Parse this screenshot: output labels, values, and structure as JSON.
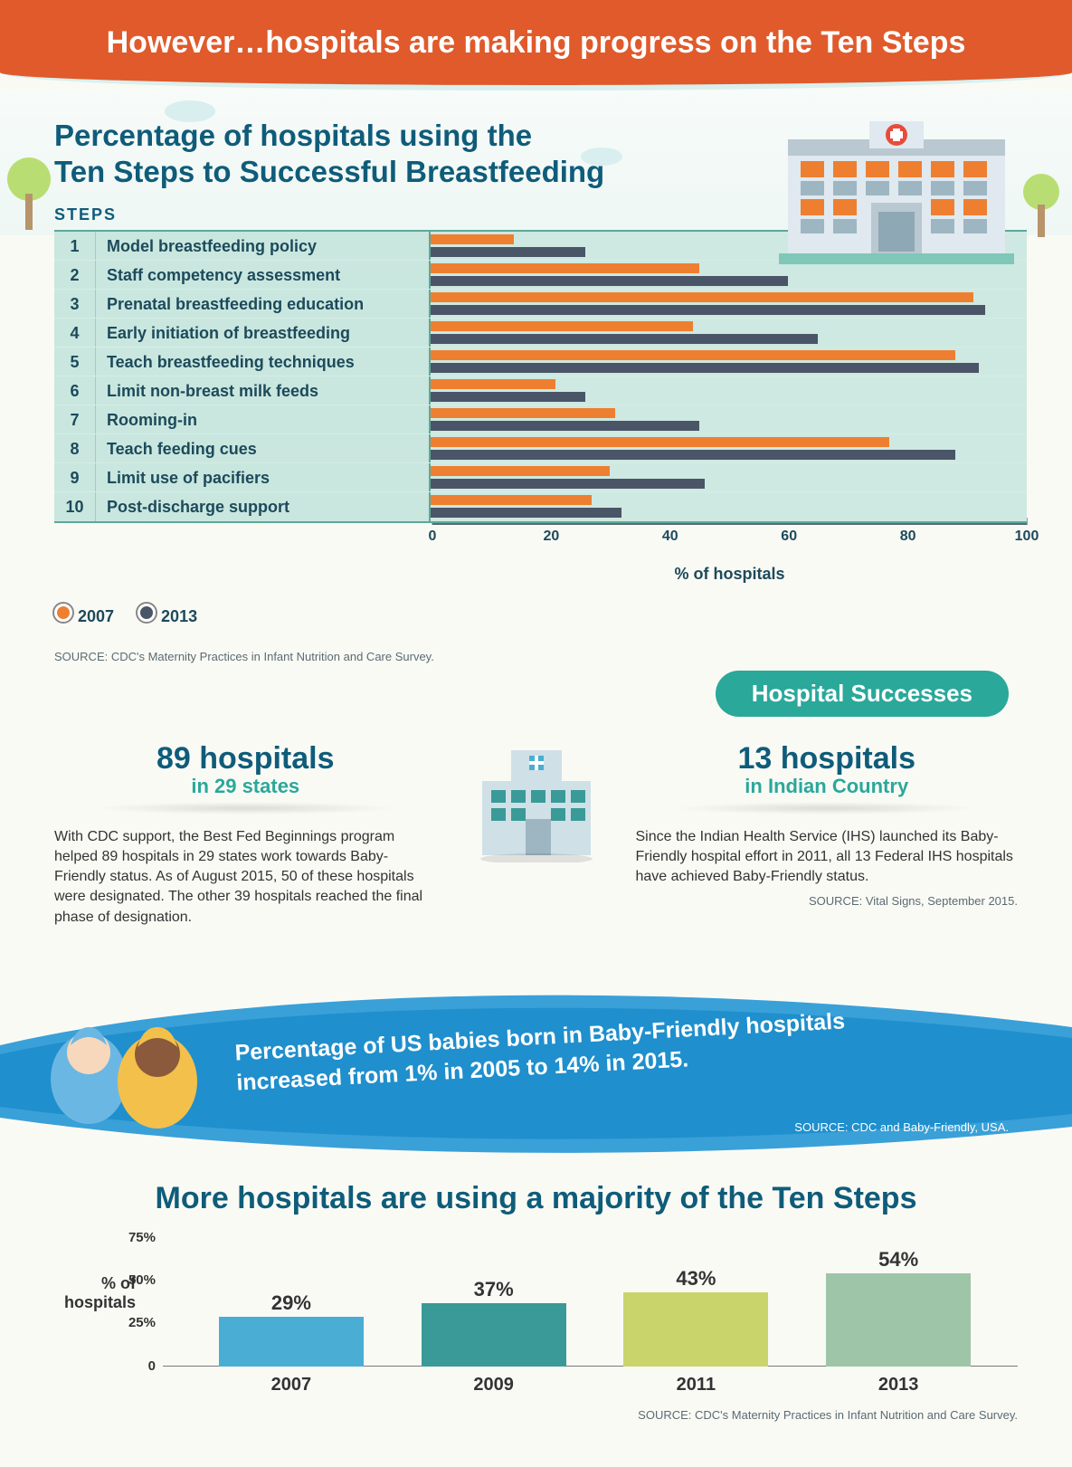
{
  "banner_title": "However…hospitals are making progress on the Ten Steps",
  "chart": {
    "title": "Percentage of hospitals using the\nTen Steps to Successful Breastfeeding",
    "steps_header": "STEPS",
    "x_label": "% of hospitals",
    "xlim": [
      0,
      100
    ],
    "x_ticks": [
      0,
      20,
      40,
      60,
      80,
      100
    ],
    "series_years": [
      "2007",
      "2013"
    ],
    "series_colors": {
      "2007": "#ef7f30",
      "2013": "#4a5568"
    },
    "bar_bg": "#cee9e1",
    "label_bg": "#c9e7df",
    "block_bg": "#7fc7b7",
    "text_color": "#1d4a5b",
    "steps": [
      {
        "n": "1",
        "label": "Model breastfeeding policy",
        "v2007": 14,
        "v2013": 26
      },
      {
        "n": "2",
        "label": "Staff competency assessment",
        "v2007": 45,
        "v2013": 60
      },
      {
        "n": "3",
        "label": "Prenatal breastfeeding education",
        "v2007": 91,
        "v2013": 93
      },
      {
        "n": "4",
        "label": "Early initiation of breastfeeding",
        "v2007": 44,
        "v2013": 65
      },
      {
        "n": "5",
        "label": "Teach breastfeeding techniques",
        "v2007": 88,
        "v2013": 92
      },
      {
        "n": "6",
        "label": "Limit non-breast milk feeds",
        "v2007": 21,
        "v2013": 26
      },
      {
        "n": "7",
        "label": "Rooming-in",
        "v2007": 31,
        "v2013": 45
      },
      {
        "n": "8",
        "label": "Teach feeding cues",
        "v2007": 77,
        "v2013": 88
      },
      {
        "n": "9",
        "label": "Limit use of pacifiers",
        "v2007": 30,
        "v2013": 46
      },
      {
        "n": "10",
        "label": "Post-discharge support",
        "v2007": 27,
        "v2013": 32
      }
    ],
    "source": "SOURCE: CDC's Maternity Practices in Infant Nutrition and Care Survey."
  },
  "successes": {
    "badge": "Hospital Successes",
    "left": {
      "big": "89 hospitals",
      "sub": "in 29 states",
      "body": "With CDC support, the Best Fed Beginnings program helped 89 hospitals in 29 states work towards Baby-Friendly status. As of August 2015, 50 of these hospitals were designated. The other 39 hospitals reached the final phase of designation."
    },
    "right": {
      "big": "13 hospitals",
      "sub": "in Indian Country",
      "body": "Since the Indian Health Service (IHS) launched its Baby-Friendly hospital effort in 2011, all 13 Federal IHS hospitals have achieved Baby-Friendly status.",
      "source": "SOURCE: Vital Signs, September 2015."
    }
  },
  "ribbon": {
    "line1": "Percentage of US babies born in Baby-Friendly hospitals",
    "line2": "increased from 1% in 2005 to 14% in 2015.",
    "source": "SOURCE: CDC and Baby-Friendly, USA.",
    "bg_outer": "#3aa0d8",
    "bg_inner": "#1f8fcd"
  },
  "bottom_chart": {
    "title": "More hospitals are using a majority of the Ten Steps",
    "ylabel": "% of hospitals",
    "ylim": [
      0,
      75
    ],
    "y_ticks": [
      0,
      25,
      50,
      75
    ],
    "y_tick_labels": [
      "0",
      "25%",
      "50%",
      "75%"
    ],
    "bars": [
      {
        "year": "2007",
        "value": 29,
        "label": "29%",
        "color": "#4aaed4"
      },
      {
        "year": "2009",
        "value": 37,
        "label": "37%",
        "color": "#3a9a98"
      },
      {
        "year": "2011",
        "value": 43,
        "label": "43%",
        "color": "#c9d46a"
      },
      {
        "year": "2013",
        "value": 54,
        "label": "54%",
        "color": "#9ec5a8"
      }
    ],
    "source": "SOURCE: CDC's Maternity Practices in Infant Nutrition and Care Survey."
  },
  "palette": {
    "orange": "#e05a2b",
    "teal": "#2aa89a",
    "navy": "#0f5c7a",
    "page_bg": "#fafaf5"
  }
}
